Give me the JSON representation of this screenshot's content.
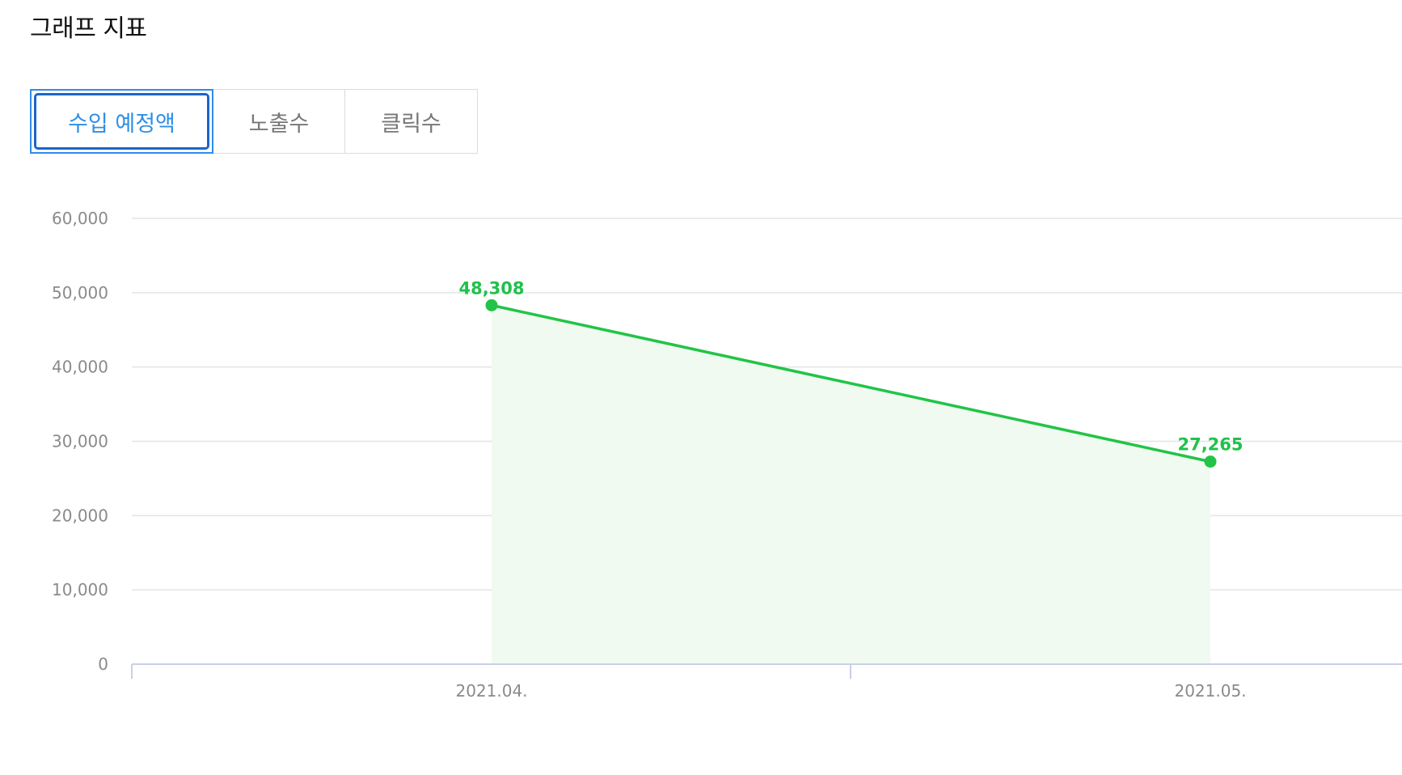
{
  "header": {
    "title": "그래프 지표"
  },
  "tabs": [
    {
      "label": "수입 예정액",
      "active": true
    },
    {
      "label": "노출수",
      "active": false
    },
    {
      "label": "클릭수",
      "active": false
    }
  ],
  "colors": {
    "series": "#22c447",
    "area": "#f0faf1",
    "grid": "#e4e4e4",
    "axis": "#c9cfe6",
    "active_tab": "#2d8fe6"
  },
  "chart_data": {
    "type": "line",
    "title": "",
    "xlabel": "",
    "ylabel": "",
    "categories": [
      "2021.04.",
      "2021.05."
    ],
    "series": [
      {
        "values": [
          48308,
          27265
        ]
      }
    ],
    "data_labels": [
      "48,308",
      "27,265"
    ],
    "yticks": [
      "0",
      "10,000",
      "20,000",
      "30,000",
      "40,000",
      "50,000",
      "60,000"
    ],
    "ylim": [
      0,
      60000
    ],
    "grid": true,
    "area_fill": true
  }
}
